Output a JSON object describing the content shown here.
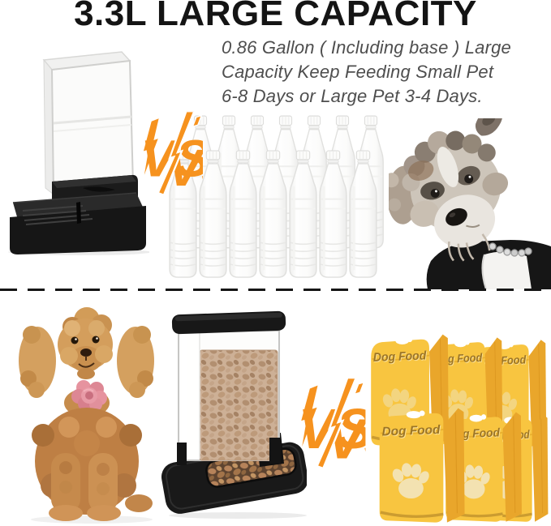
{
  "header": {
    "title": "3.3L LARGE CAPACITY",
    "subtitle_lines": [
      "0.86 Gallon ( Including base ) Large",
      "Capacity Keep Feeding Small Pet",
      "6-8 Days or Large Pet 3-4 Days."
    ]
  },
  "vs_badge": {
    "label": "VS",
    "color": "#F6921E"
  },
  "top_comparison": {
    "left_item": "automatic-water-dispenser-product-photo",
    "right_item": "stacked-water-bottles",
    "bottle_rows": 2,
    "bottles_per_row": 7,
    "bottle_total": 14,
    "pet_photo": "schnauzer-puppy-photo"
  },
  "bottom_comparison": {
    "pet_photo": "toy-poodle-photo",
    "left_item": "automatic-food-dispenser-product-photo",
    "right_item": "dog-food-bags",
    "bag_rows": 2,
    "bags_per_row": 3,
    "bag_total": 6,
    "bag_label": "Dog Food"
  },
  "colors": {
    "accent_orange": "#F6921E",
    "bag_yellow": "#F8C540",
    "bag_side_yellow": "#E9A62B",
    "bag_text_brown": "#9C7526",
    "paw_cream": "#F3E4B8",
    "kibble_brown": "#B28F70",
    "device_black": "#1A1A1A",
    "divider_black": "#151515"
  }
}
